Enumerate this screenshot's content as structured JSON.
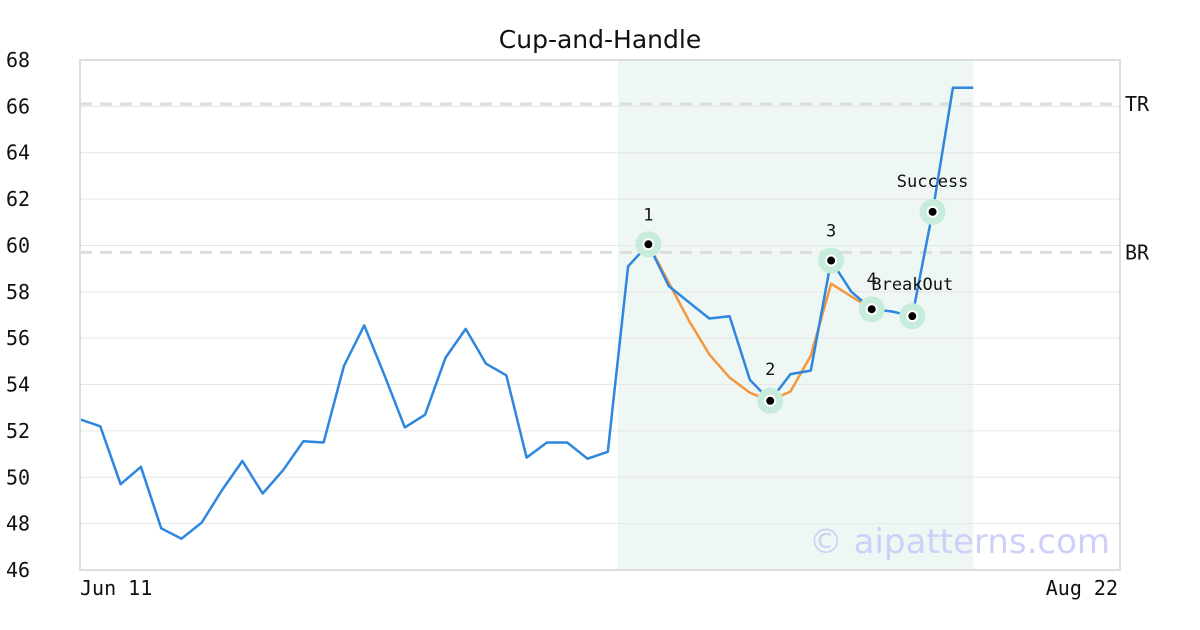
{
  "chart_data": {
    "type": "line",
    "title": "Cup-and-Handle",
    "xlabel": "",
    "ylabel": "",
    "ylim": [
      46,
      68
    ],
    "y_ticks": [
      "46",
      "48",
      "50",
      "52",
      "54",
      "56",
      "58",
      "60",
      "62",
      "64",
      "66",
      "68"
    ],
    "x_ticks": [
      "Jun 11",
      "Aug 22"
    ],
    "grid": true,
    "series": [
      {
        "color": "#2e86de",
        "values": [
          52.5,
          52.2,
          49.7,
          50.45,
          47.8,
          47.35,
          48.05,
          49.45,
          50.7,
          49.3,
          50.3,
          51.55,
          51.5,
          54.8,
          56.55,
          54.4,
          52.15,
          52.7,
          55.15,
          56.4,
          54.9,
          54.4,
          50.85,
          51.5,
          51.5,
          50.8,
          51.1,
          59.1,
          60.05,
          58.25,
          57.55,
          56.85,
          56.95,
          54.2,
          53.3,
          54.45,
          54.6,
          59.35,
          58.0,
          57.25,
          57.15,
          56.95,
          61.45,
          66.8,
          66.8
        ]
      },
      {
        "color": "#f4963a",
        "start_index": 28,
        "values": [
          60.05,
          58.4,
          56.75,
          55.3,
          54.3,
          53.65,
          53.3,
          53.7,
          55.25,
          58.35,
          57.8,
          57.25
        ]
      }
    ],
    "highlight_region": {
      "from_index": 26,
      "to_index": 44,
      "color": "#eef7f3"
    },
    "levels": [
      {
        "label": "TR",
        "value": 66.1
      },
      {
        "label": "BR",
        "value": 59.7
      }
    ],
    "points": [
      {
        "index": 28,
        "value": 60.05,
        "label": "1"
      },
      {
        "index": 34,
        "value": 53.3,
        "label": "2"
      },
      {
        "index": 37,
        "value": 59.35,
        "label": "3"
      },
      {
        "index": 39,
        "value": 57.25,
        "label": "4"
      },
      {
        "index": 41,
        "value": 56.95,
        "label": "BreakOut"
      },
      {
        "index": 42,
        "value": 61.45,
        "label": "Success"
      }
    ],
    "watermark": "© aipatterns.com"
  }
}
